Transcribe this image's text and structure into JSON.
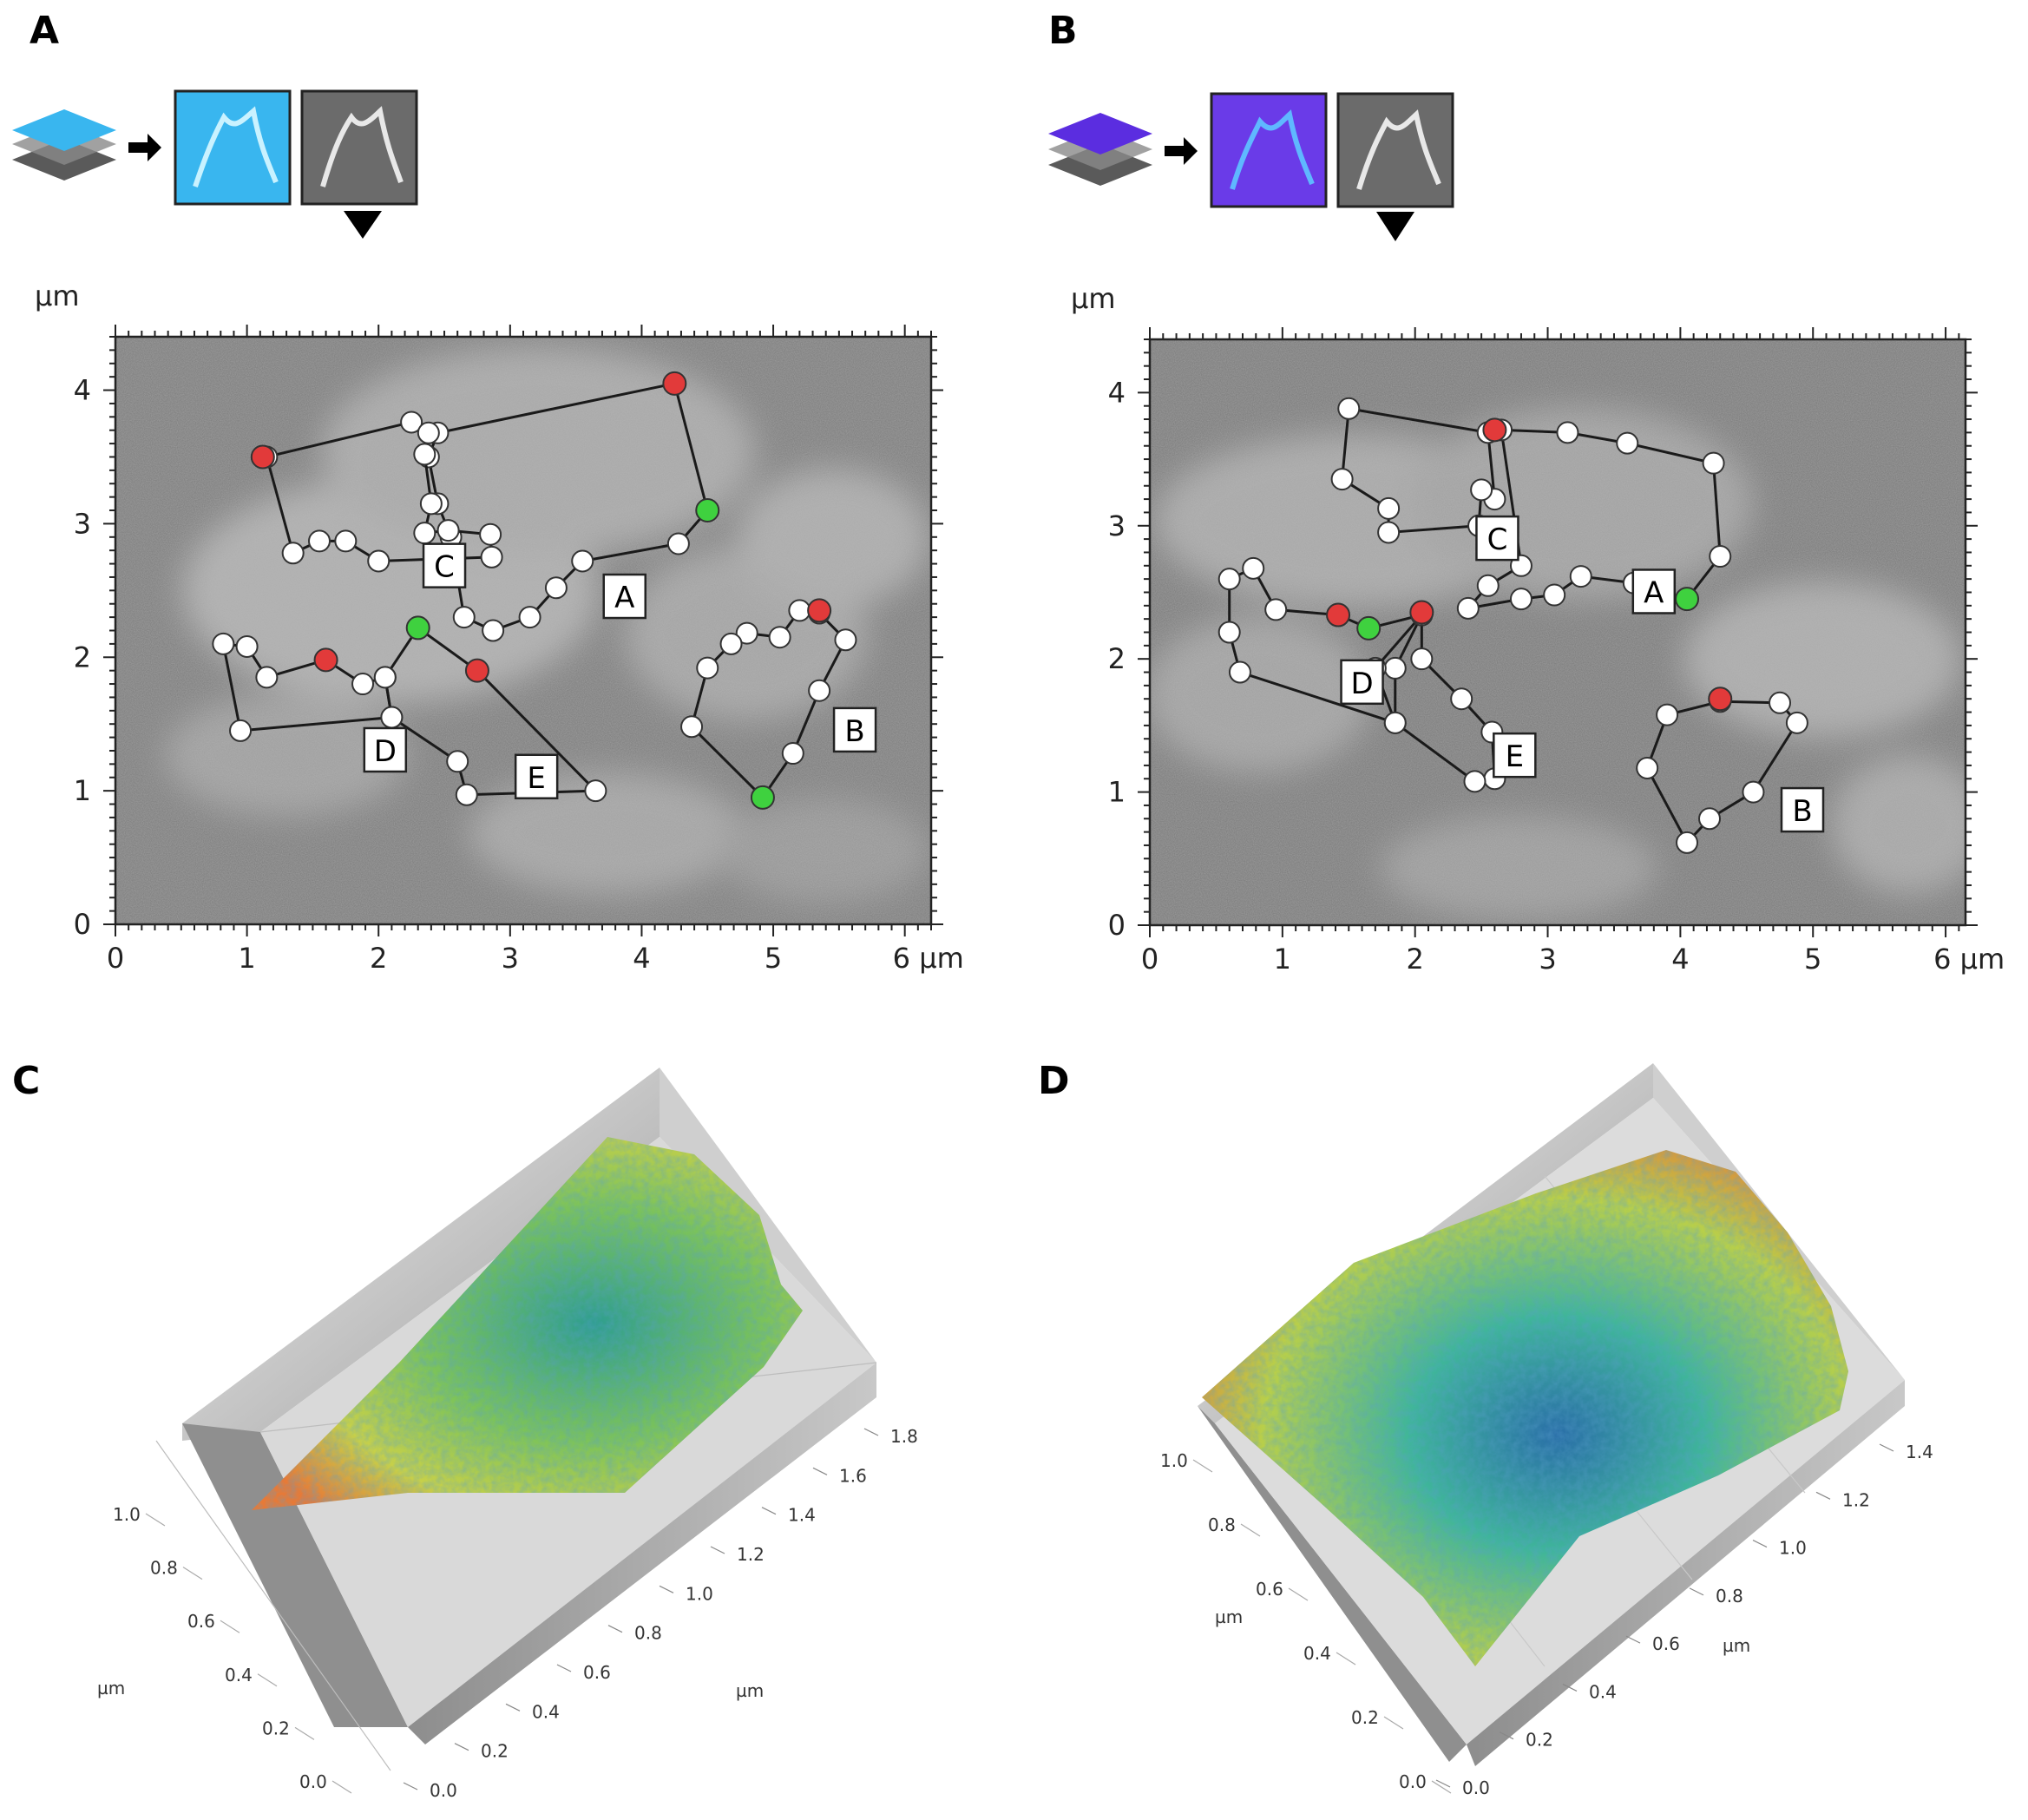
{
  "panels": [
    {
      "letter": "A",
      "icon_colors": [
        "#39b6ef",
        "#7fd6fb"
      ],
      "unit_y": "µm",
      "x_ticks": [
        "0",
        "1",
        "2",
        "3",
        "4",
        "5"
      ],
      "x_unit_tick": "6 µm",
      "y_ticks": [
        "0",
        "1",
        "2",
        "3",
        "4"
      ],
      "region_labels": [
        "A",
        "B",
        "C",
        "D",
        "E"
      ],
      "x_range": [
        0,
        6.2
      ],
      "y_range": [
        0,
        4.4
      ],
      "polygons": [
        {
          "id": "A",
          "pts": [
            [
              2.45,
              3.68
            ],
            [
              4.25,
              4.05
            ],
            [
              4.5,
              3.1
            ],
            [
              4.28,
              2.85
            ],
            [
              3.55,
              2.72
            ],
            [
              3.35,
              2.52
            ],
            [
              3.15,
              2.3
            ],
            [
              2.87,
              2.2
            ],
            [
              2.65,
              2.3
            ],
            [
              2.55,
              2.9
            ],
            [
              2.45,
              3.15
            ],
            [
              2.38,
              3.5
            ]
          ]
        },
        {
          "id": "B",
          "pts": [
            [
              5.35,
              2.33
            ],
            [
              5.2,
              2.35
            ],
            [
              5.05,
              2.15
            ],
            [
              4.8,
              2.18
            ],
            [
              4.68,
              2.1
            ],
            [
              4.5,
              1.92
            ],
            [
              4.38,
              1.48
            ],
            [
              4.92,
              0.95
            ],
            [
              5.15,
              1.28
            ],
            [
              5.35,
              1.75
            ],
            [
              5.55,
              2.13
            ]
          ]
        },
        {
          "id": "C",
          "pts": [
            [
              1.15,
              3.5
            ],
            [
              2.25,
              3.76
            ],
            [
              2.38,
              3.68
            ],
            [
              2.35,
              3.52
            ],
            [
              2.4,
              3.15
            ],
            [
              2.35,
              2.93
            ],
            [
              2.53,
              2.95
            ],
            [
              2.85,
              2.92
            ],
            [
              2.86,
              2.75
            ],
            [
              2.0,
              2.72
            ],
            [
              1.75,
              2.87
            ],
            [
              1.55,
              2.87
            ],
            [
              1.35,
              2.78
            ]
          ]
        },
        {
          "id": "D",
          "pts": [
            [
              0.82,
              2.1
            ],
            [
              1.0,
              2.08
            ],
            [
              1.15,
              1.85
            ],
            [
              1.6,
              1.98
            ],
            [
              1.88,
              1.8
            ],
            [
              2.05,
              1.85
            ],
            [
              2.1,
              1.55
            ],
            [
              0.95,
              1.45
            ]
          ]
        },
        {
          "id": "E",
          "pts": [
            [
              2.3,
              2.22
            ],
            [
              2.75,
              1.9
            ],
            [
              3.65,
              1.0
            ],
            [
              2.67,
              0.97
            ],
            [
              2.6,
              1.22
            ],
            [
              2.1,
              1.55
            ],
            [
              2.05,
              1.85
            ]
          ]
        }
      ],
      "red_markers": [
        [
          1.12,
          3.5
        ],
        [
          4.25,
          4.05
        ],
        [
          5.35,
          2.35
        ],
        [
          1.6,
          1.98
        ],
        [
          2.75,
          1.9
        ]
      ],
      "green_markers": [
        [
          4.5,
          3.1
        ],
        [
          2.3,
          2.22
        ],
        [
          4.92,
          0.95
        ]
      ],
      "label_pos": [
        [
          3.87,
          2.45
        ],
        [
          5.62,
          1.45
        ],
        [
          2.5,
          2.68
        ],
        [
          2.05,
          1.3
        ],
        [
          3.2,
          1.1
        ]
      ]
    },
    {
      "letter": "B",
      "icon_colors": [
        "#5b2de0",
        "#8a55f5"
      ],
      "unit_y": "µm",
      "x_ticks": [
        "0",
        "1",
        "2",
        "3",
        "4",
        "5"
      ],
      "x_unit_tick": "6 µm",
      "y_ticks": [
        "0",
        "1",
        "2",
        "3",
        "4"
      ],
      "region_labels": [
        "A",
        "B",
        "C",
        "D",
        "E"
      ],
      "x_range": [
        0,
        6.15
      ],
      "y_range": [
        0,
        4.4
      ],
      "polygons": [
        {
          "id": "A",
          "pts": [
            [
              2.65,
              3.72
            ],
            [
              3.15,
              3.7
            ],
            [
              3.6,
              3.62
            ],
            [
              4.25,
              3.47
            ],
            [
              4.3,
              2.77
            ],
            [
              4.05,
              2.45
            ],
            [
              3.65,
              2.57
            ],
            [
              3.25,
              2.62
            ],
            [
              3.05,
              2.48
            ],
            [
              2.8,
              2.45
            ],
            [
              2.4,
              2.38
            ],
            [
              2.55,
              2.55
            ],
            [
              2.8,
              2.7
            ]
          ]
        },
        {
          "id": "B",
          "pts": [
            [
              4.3,
              1.68
            ],
            [
              4.75,
              1.67
            ],
            [
              4.88,
              1.52
            ],
            [
              4.55,
              1.0
            ],
            [
              4.22,
              0.8
            ],
            [
              4.05,
              0.62
            ],
            [
              3.75,
              1.18
            ],
            [
              3.9,
              1.58
            ]
          ]
        },
        {
          "id": "C",
          "pts": [
            [
              1.5,
              3.88
            ],
            [
              2.55,
              3.7
            ],
            [
              2.6,
              3.2
            ],
            [
              2.5,
              3.27
            ],
            [
              2.48,
              3.0
            ],
            [
              1.8,
              2.95
            ],
            [
              1.8,
              3.13
            ],
            [
              1.45,
              3.35
            ]
          ]
        },
        {
          "id": "D",
          "pts": [
            [
              0.6,
              2.6
            ],
            [
              0.78,
              2.68
            ],
            [
              0.95,
              2.37
            ],
            [
              1.42,
              2.33
            ],
            [
              1.65,
              2.23
            ],
            [
              2.05,
              2.33
            ],
            [
              1.85,
              1.93
            ],
            [
              1.85,
              1.52
            ],
            [
              0.68,
              1.9
            ],
            [
              0.6,
              2.2
            ]
          ]
        },
        {
          "id": "E",
          "pts": [
            [
              2.05,
              2.33
            ],
            [
              2.05,
              2.0
            ],
            [
              2.35,
              1.7
            ],
            [
              2.58,
              1.45
            ],
            [
              2.6,
              1.1
            ],
            [
              2.45,
              1.08
            ],
            [
              1.85,
              1.52
            ],
            [
              1.7,
              1.93
            ]
          ]
        }
      ],
      "red_markers": [
        [
          2.6,
          3.72
        ],
        [
          1.42,
          2.33
        ],
        [
          2.05,
          2.35
        ],
        [
          4.3,
          1.7
        ]
      ],
      "green_markers": [
        [
          4.05,
          2.45
        ],
        [
          1.65,
          2.23
        ]
      ],
      "label_pos": [
        [
          3.8,
          2.5
        ],
        [
          4.92,
          0.86
        ],
        [
          2.62,
          2.9
        ],
        [
          1.6,
          1.82
        ],
        [
          2.75,
          1.27
        ]
      ]
    }
  ],
  "panel_c": {
    "letter": "C",
    "ticks_right": [
      "1.8",
      "1.6",
      "1.4",
      "1.2",
      "1.0",
      "0.8",
      "0.6",
      "0.4",
      "0.2",
      "0.0"
    ],
    "ticks_left": [
      "1.0",
      "0.8",
      "0.6",
      "0.4",
      "0.2",
      "0.0"
    ],
    "unit_right": "µm",
    "unit_left": "µm"
  },
  "panel_d": {
    "letter": "D",
    "ticks_right": [
      "1.4",
      "1.2",
      "1.0",
      "0.8",
      "0.6",
      "0.4",
      "0.2",
      "0.0"
    ],
    "ticks_left": [
      "1.0",
      "0.8",
      "0.6",
      "0.4",
      "0.2",
      "0.0"
    ],
    "unit_right": "µm",
    "unit_left": "µm"
  },
  "colors": {
    "red": "#e23a3a",
    "green": "#3fd13f",
    "white_marker": "#ffffff",
    "sem_gray": "#7d7d7d",
    "height_low": "#1f3f8f",
    "height_mid": "#3fb59a",
    "height_high": "#e67a38"
  }
}
